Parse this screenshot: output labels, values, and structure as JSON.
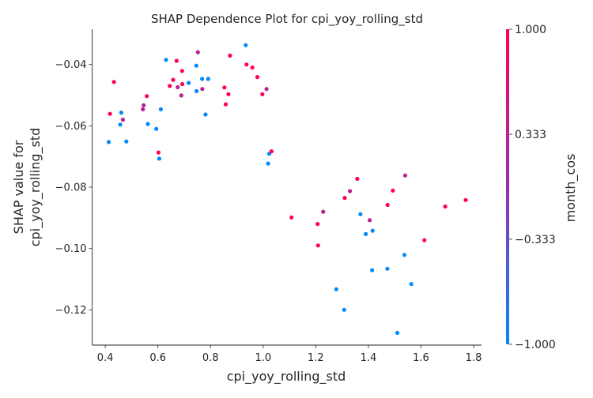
{
  "chart_data": {
    "type": "scatter",
    "title": "SHAP Dependence Plot for cpi_yoy_rolling_std",
    "xlabel": "cpi_yoy_rolling_std",
    "ylabel_lines": [
      "SHAP value for",
      "cpi_yoy_rolling_std"
    ],
    "xlim": [
      0.35,
      1.83
    ],
    "ylim": [
      -0.1315,
      -0.0285
    ],
    "xticks": [
      0.4,
      0.6,
      0.8,
      1.0,
      1.2,
      1.4,
      1.6,
      1.8
    ],
    "xtick_labels": [
      "0.4",
      "0.6",
      "0.8",
      "1.0",
      "1.2",
      "1.4",
      "1.6",
      "1.8"
    ],
    "yticks": [
      -0.04,
      -0.06,
      -0.08,
      -0.1,
      -0.12
    ],
    "ytick_labels": [
      "−0.04",
      "−0.06",
      "−0.08",
      "−0.10",
      "−0.12"
    ],
    "grid": false,
    "colorbar": {
      "label": "month_cos",
      "range": [
        -1.0,
        1.0
      ],
      "ticks": [
        1.0,
        0.333,
        -0.333,
        -1.0
      ],
      "tick_labels": [
        "1.000",
        "0.333",
        "−0.333",
        "−1.000"
      ],
      "colors": [
        "#ff0052",
        "#9b2fb4",
        "#008afb"
      ]
    },
    "points": [
      {
        "x": 0.413,
        "y": -0.0653,
        "c": -1.0
      },
      {
        "x": 0.418,
        "y": -0.0561,
        "c": 1.0
      },
      {
        "x": 0.433,
        "y": -0.0457,
        "c": 1.0
      },
      {
        "x": 0.457,
        "y": -0.0596,
        "c": -1.0
      },
      {
        "x": 0.461,
        "y": -0.0557,
        "c": -1.0
      },
      {
        "x": 0.467,
        "y": -0.058,
        "c": 0.333
      },
      {
        "x": 0.48,
        "y": -0.0651,
        "c": -1.0
      },
      {
        "x": 0.543,
        "y": -0.0546,
        "c": 0.333
      },
      {
        "x": 0.546,
        "y": -0.0533,
        "c": 0.333
      },
      {
        "x": 0.558,
        "y": -0.0503,
        "c": 1.0
      },
      {
        "x": 0.562,
        "y": -0.0594,
        "c": -1.0
      },
      {
        "x": 0.594,
        "y": -0.061,
        "c": -1.0
      },
      {
        "x": 0.602,
        "y": -0.0687,
        "c": 1.0
      },
      {
        "x": 0.605,
        "y": -0.0707,
        "c": -1.0
      },
      {
        "x": 0.611,
        "y": -0.0546,
        "c": -1.0
      },
      {
        "x": 0.631,
        "y": -0.0385,
        "c": -1.0
      },
      {
        "x": 0.645,
        "y": -0.047,
        "c": 1.0
      },
      {
        "x": 0.658,
        "y": -0.045,
        "c": 1.0
      },
      {
        "x": 0.671,
        "y": -0.0388,
        "c": 1.0
      },
      {
        "x": 0.675,
        "y": -0.0474,
        "c": 0.333
      },
      {
        "x": 0.689,
        "y": -0.0501,
        "c": 0.333
      },
      {
        "x": 0.692,
        "y": -0.0421,
        "c": 1.0
      },
      {
        "x": 0.693,
        "y": -0.0464,
        "c": 1.0
      },
      {
        "x": 0.717,
        "y": -0.046,
        "c": -1.0
      },
      {
        "x": 0.746,
        "y": -0.0404,
        "c": -1.0
      },
      {
        "x": 0.747,
        "y": -0.0487,
        "c": -1.0
      },
      {
        "x": 0.752,
        "y": -0.036,
        "c": 0.333
      },
      {
        "x": 0.768,
        "y": -0.0447,
        "c": -1.0
      },
      {
        "x": 0.769,
        "y": -0.048,
        "c": 0.333
      },
      {
        "x": 0.781,
        "y": -0.0563,
        "c": -1.0
      },
      {
        "x": 0.791,
        "y": -0.0447,
        "c": -1.0
      },
      {
        "x": 0.853,
        "y": -0.0475,
        "c": 1.0
      },
      {
        "x": 0.858,
        "y": -0.053,
        "c": 1.0
      },
      {
        "x": 0.868,
        "y": -0.0497,
        "c": 1.0
      },
      {
        "x": 0.874,
        "y": -0.0371,
        "c": 1.0
      },
      {
        "x": 0.934,
        "y": -0.0337,
        "c": -1.0
      },
      {
        "x": 0.937,
        "y": -0.04,
        "c": 1.0
      },
      {
        "x": 0.959,
        "y": -0.041,
        "c": 1.0
      },
      {
        "x": 0.978,
        "y": -0.0441,
        "c": 1.0
      },
      {
        "x": 0.997,
        "y": -0.0497,
        "c": 1.0
      },
      {
        "x": 1.013,
        "y": -0.048,
        "c": 0.333
      },
      {
        "x": 1.019,
        "y": -0.0723,
        "c": -1.0
      },
      {
        "x": 1.023,
        "y": -0.0691,
        "c": -1.0
      },
      {
        "x": 1.032,
        "y": -0.0683,
        "c": 1.0
      },
      {
        "x": 1.108,
        "y": -0.0899,
        "c": 1.0
      },
      {
        "x": 1.207,
        "y": -0.092,
        "c": 1.0
      },
      {
        "x": 1.209,
        "y": -0.099,
        "c": 1.0
      },
      {
        "x": 1.228,
        "y": -0.088,
        "c": 0.333
      },
      {
        "x": 1.278,
        "y": -0.1133,
        "c": -1.0
      },
      {
        "x": 1.308,
        "y": -0.12,
        "c": -1.0
      },
      {
        "x": 1.31,
        "y": -0.0835,
        "c": 1.0
      },
      {
        "x": 1.33,
        "y": -0.0813,
        "c": 0.333
      },
      {
        "x": 1.358,
        "y": -0.0773,
        "c": 1.0
      },
      {
        "x": 1.37,
        "y": -0.0888,
        "c": -1.0
      },
      {
        "x": 1.39,
        "y": -0.0953,
        "c": -1.0
      },
      {
        "x": 1.405,
        "y": -0.0908,
        "c": 0.333
      },
      {
        "x": 1.414,
        "y": -0.1071,
        "c": -1.0
      },
      {
        "x": 1.416,
        "y": -0.0942,
        "c": -1.0
      },
      {
        "x": 1.472,
        "y": -0.1066,
        "c": -1.0
      },
      {
        "x": 1.473,
        "y": -0.0858,
        "c": 1.0
      },
      {
        "x": 1.493,
        "y": -0.0811,
        "c": 1.0
      },
      {
        "x": 1.51,
        "y": -0.1275,
        "c": -1.0
      },
      {
        "x": 1.537,
        "y": -0.1021,
        "c": -1.0
      },
      {
        "x": 1.54,
        "y": -0.0762,
        "c": 0.333
      },
      {
        "x": 1.563,
        "y": -0.1116,
        "c": -1.0
      },
      {
        "x": 1.613,
        "y": -0.0973,
        "c": 1.0
      },
      {
        "x": 1.692,
        "y": -0.0863,
        "c": 1.0
      },
      {
        "x": 1.77,
        "y": -0.0842,
        "c": 1.0
      }
    ]
  }
}
